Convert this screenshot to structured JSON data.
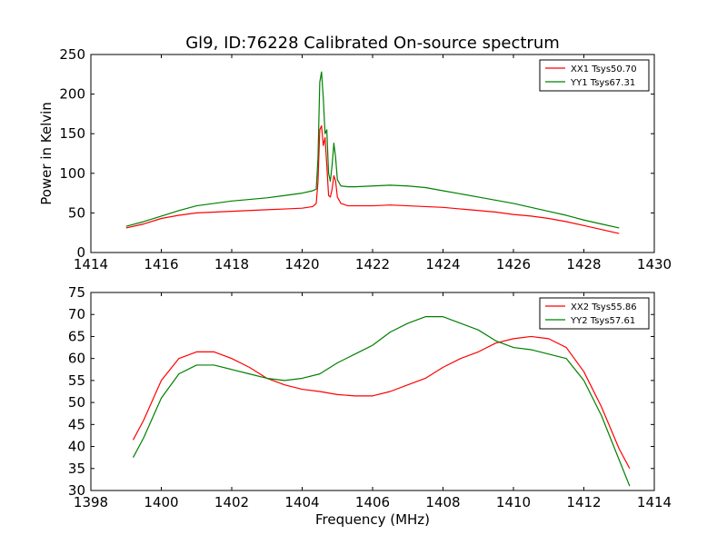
{
  "figure": {
    "title": "Gl9, ID:76228 Calibrated On-source spectrum",
    "xlabel": "Frequency (MHz)",
    "ylabel_top": "Power in Kelvin"
  },
  "chart_data": [
    {
      "type": "line",
      "ylabel": "Power in Kelvin",
      "xlim": [
        1414,
        1430
      ],
      "ylim": [
        0,
        250
      ],
      "xticks": [
        1414,
        1416,
        1418,
        1420,
        1422,
        1424,
        1426,
        1428,
        1430
      ],
      "yticks": [
        0,
        50,
        100,
        150,
        200,
        250
      ],
      "legend_position": "top-right",
      "grid": false,
      "series": [
        {
          "name": "XX1 Tsys50.70",
          "color": "#ff0000",
          "points": [
            [
              1415.0,
              31
            ],
            [
              1415.5,
              36
            ],
            [
              1416.0,
              43
            ],
            [
              1416.5,
              47
            ],
            [
              1417.0,
              50
            ],
            [
              1417.5,
              51
            ],
            [
              1418.0,
              52
            ],
            [
              1418.5,
              53
            ],
            [
              1419.0,
              54
            ],
            [
              1419.5,
              55
            ],
            [
              1420.0,
              56
            ],
            [
              1420.3,
              58
            ],
            [
              1420.4,
              62
            ],
            [
              1420.45,
              90
            ],
            [
              1420.5,
              155
            ],
            [
              1420.55,
              160
            ],
            [
              1420.6,
              135
            ],
            [
              1420.65,
              145
            ],
            [
              1420.7,
              110
            ],
            [
              1420.75,
              72
            ],
            [
              1420.8,
              70
            ],
            [
              1420.85,
              80
            ],
            [
              1420.9,
              97
            ],
            [
              1420.95,
              90
            ],
            [
              1421.0,
              70
            ],
            [
              1421.1,
              62
            ],
            [
              1421.3,
              59
            ],
            [
              1421.5,
              59
            ],
            [
              1422.0,
              59
            ],
            [
              1422.5,
              60
            ],
            [
              1423.0,
              59
            ],
            [
              1423.5,
              58
            ],
            [
              1424.0,
              57
            ],
            [
              1424.5,
              55
            ],
            [
              1425.0,
              53
            ],
            [
              1425.5,
              51
            ],
            [
              1426.0,
              48
            ],
            [
              1426.5,
              46
            ],
            [
              1427.0,
              43
            ],
            [
              1427.5,
              39
            ],
            [
              1428.0,
              34
            ],
            [
              1428.5,
              29
            ],
            [
              1429.0,
              24
            ]
          ]
        },
        {
          "name": "YY1 Tsys67.31",
          "color": "#008000",
          "points": [
            [
              1415.0,
              33
            ],
            [
              1415.5,
              39
            ],
            [
              1416.0,
              46
            ],
            [
              1416.5,
              53
            ],
            [
              1417.0,
              59
            ],
            [
              1417.5,
              62
            ],
            [
              1418.0,
              65
            ],
            [
              1418.5,
              67
            ],
            [
              1419.0,
              69
            ],
            [
              1419.5,
              72
            ],
            [
              1420.0,
              75
            ],
            [
              1420.3,
              78
            ],
            [
              1420.4,
              80
            ],
            [
              1420.45,
              120
            ],
            [
              1420.5,
              215
            ],
            [
              1420.55,
              228
            ],
            [
              1420.6,
              195
            ],
            [
              1420.65,
              150
            ],
            [
              1420.7,
              155
            ],
            [
              1420.75,
              100
            ],
            [
              1420.8,
              90
            ],
            [
              1420.85,
              110
            ],
            [
              1420.9,
              138
            ],
            [
              1420.95,
              120
            ],
            [
              1421.0,
              92
            ],
            [
              1421.1,
              84
            ],
            [
              1421.3,
              83
            ],
            [
              1421.5,
              83
            ],
            [
              1422.0,
              84
            ],
            [
              1422.5,
              85
            ],
            [
              1423.0,
              84
            ],
            [
              1423.5,
              82
            ],
            [
              1424.0,
              78
            ],
            [
              1424.5,
              74
            ],
            [
              1425.0,
              70
            ],
            [
              1425.5,
              66
            ],
            [
              1426.0,
              62
            ],
            [
              1426.5,
              57
            ],
            [
              1427.0,
              52
            ],
            [
              1427.5,
              47
            ],
            [
              1428.0,
              41
            ],
            [
              1428.5,
              36
            ],
            [
              1429.0,
              31
            ]
          ]
        }
      ]
    },
    {
      "type": "line",
      "xlabel": "Frequency (MHz)",
      "xlim": [
        1398,
        1414
      ],
      "ylim": [
        30,
        75
      ],
      "xticks": [
        1398,
        1400,
        1402,
        1404,
        1406,
        1408,
        1410,
        1412,
        1414
      ],
      "yticks": [
        30,
        35,
        40,
        45,
        50,
        55,
        60,
        65,
        70,
        75
      ],
      "legend_position": "top-right",
      "grid": false,
      "series": [
        {
          "name": "XX2 Tsys55.86",
          "color": "#ff0000",
          "points": [
            [
              1399.2,
              41.5
            ],
            [
              1399.5,
              46
            ],
            [
              1400.0,
              55
            ],
            [
              1400.5,
              60
            ],
            [
              1401.0,
              61.5
            ],
            [
              1401.5,
              61.5
            ],
            [
              1402.0,
              60
            ],
            [
              1402.5,
              58
            ],
            [
              1403.0,
              55.5
            ],
            [
              1403.5,
              54
            ],
            [
              1404.0,
              53
            ],
            [
              1404.5,
              52.5
            ],
            [
              1405.0,
              51.8
            ],
            [
              1405.5,
              51.5
            ],
            [
              1406.0,
              51.5
            ],
            [
              1406.5,
              52.5
            ],
            [
              1407.0,
              54
            ],
            [
              1407.5,
              55.5
            ],
            [
              1408.0,
              58
            ],
            [
              1408.5,
              60
            ],
            [
              1409.0,
              61.5
            ],
            [
              1409.5,
              63.5
            ],
            [
              1410.0,
              64.5
            ],
            [
              1410.5,
              65
            ],
            [
              1411.0,
              64.5
            ],
            [
              1411.5,
              62.5
            ],
            [
              1412.0,
              57
            ],
            [
              1412.5,
              49
            ],
            [
              1413.0,
              39.5
            ],
            [
              1413.3,
              35
            ]
          ]
        },
        {
          "name": "YY2 Tsys57.61",
          "color": "#008000",
          "points": [
            [
              1399.2,
              37.5
            ],
            [
              1399.5,
              42
            ],
            [
              1400.0,
              51
            ],
            [
              1400.5,
              56.5
            ],
            [
              1401.0,
              58.5
            ],
            [
              1401.5,
              58.5
            ],
            [
              1402.0,
              57.5
            ],
            [
              1402.5,
              56.5
            ],
            [
              1403.0,
              55.5
            ],
            [
              1403.5,
              55
            ],
            [
              1404.0,
              55.5
            ],
            [
              1404.5,
              56.5
            ],
            [
              1405.0,
              59
            ],
            [
              1405.5,
              61
            ],
            [
              1406.0,
              63
            ],
            [
              1406.5,
              66
            ],
            [
              1407.0,
              68
            ],
            [
              1407.5,
              69.5
            ],
            [
              1408.0,
              69.5
            ],
            [
              1408.5,
              68
            ],
            [
              1409.0,
              66.5
            ],
            [
              1409.5,
              64
            ],
            [
              1410.0,
              62.5
            ],
            [
              1410.5,
              62
            ],
            [
              1411.0,
              61
            ],
            [
              1411.5,
              60
            ],
            [
              1412.0,
              55
            ],
            [
              1412.5,
              47
            ],
            [
              1413.0,
              37
            ],
            [
              1413.3,
              31
            ]
          ]
        }
      ]
    }
  ]
}
